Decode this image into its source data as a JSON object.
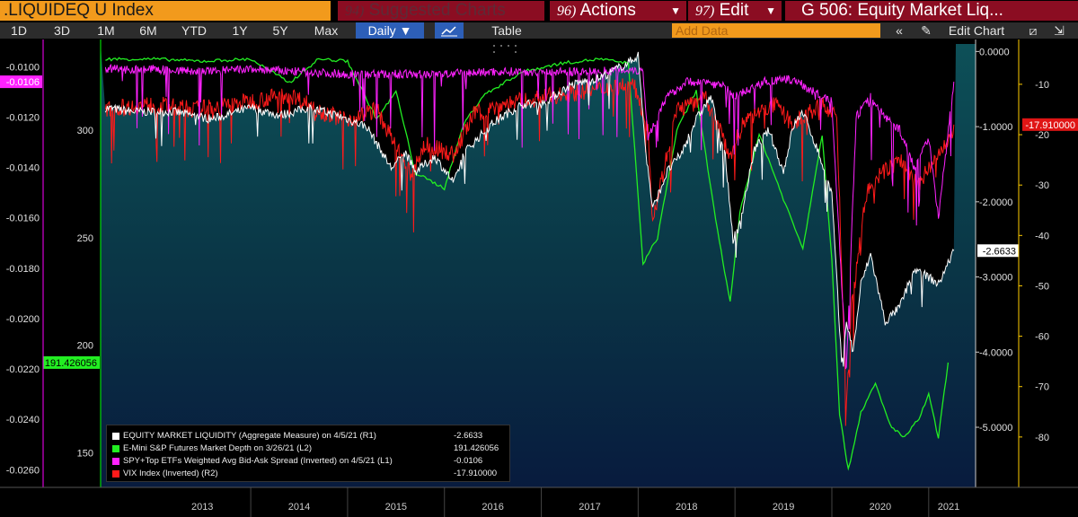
{
  "header": {
    "ticker": ".LIQUIDEQ U Index",
    "suggested": {
      "num": "94)",
      "label": "Suggested Charts"
    },
    "actions": {
      "num": "96)",
      "label": "Actions"
    },
    "edit": {
      "num": "97)",
      "label": "Edit"
    },
    "chart_title": "G 506: Equity Market Liq..."
  },
  "toolbar": {
    "ranges": [
      "1D",
      "3D",
      "1M",
      "6M",
      "YTD",
      "1Y",
      "5Y",
      "Max"
    ],
    "frequency": "Daily",
    "table": "Table",
    "add_data_placeholder": "Add Data",
    "edit_chart": "Edit Chart",
    "back_icon": "double-chevron-left-icon",
    "pencil_icon": "pencil-icon",
    "line_chart_icon": "line-chart-icon",
    "edit_icon": "edit-icon",
    "export_icon": "export-icon"
  },
  "chart_data": {
    "type": "line",
    "background": "#0a3a44",
    "x_ticks": [
      "2013",
      "2014",
      "2015",
      "2016",
      "2017",
      "2018",
      "2019",
      "2020",
      "2021"
    ],
    "axes": {
      "L1": {
        "ticks": [
          "-0.0100",
          "-0.0120",
          "-0.0140",
          "-0.0160",
          "-0.0180",
          "-0.0200",
          "-0.0220",
          "-0.0240",
          "-0.0260"
        ],
        "range": [
          -0.0267,
          -0.0091
        ],
        "color": "#ff00ff"
      },
      "L2": {
        "ticks": [
          "300",
          "250",
          "200",
          "150"
        ],
        "range": [
          134,
          340
        ],
        "color": "#00ff00"
      },
      "R1": {
        "ticks": [
          "0.0000",
          "-1.0000",
          "-2.0000",
          "-3.0000",
          "-4.0000",
          "-5.0000"
        ],
        "range": [
          -5.8,
          0.1
        ],
        "color": "#ffffff"
      },
      "R2": {
        "ticks": [
          "-10",
          "-20",
          "-30",
          "-40",
          "-50",
          "-60",
          "-70",
          "-80"
        ],
        "range": [
          -90,
          -2
        ],
        "color": "#ffcc00"
      }
    },
    "current_labels": {
      "L1": "-0.0106",
      "L2": "191.426056",
      "R1": "-2.6633",
      "R2": "-17.910000"
    },
    "series": [
      {
        "name": "EQUITY MARKET LIQUIDITY (Aggregate Measure) on 4/5/21 (R1)",
        "value": "-2.6633",
        "axis": "R1",
        "color": "#ffffff",
        "x": [
          2012.5,
          2012.8,
          2013.2,
          2013.6,
          2014.0,
          2014.3,
          2014.6,
          2014.9,
          2015.2,
          2015.45,
          2015.6,
          2015.7,
          2015.9,
          2016.1,
          2016.2,
          2016.5,
          2016.8,
          2017.0,
          2017.3,
          2017.6,
          2017.9,
          2018.0,
          2018.08,
          2018.15,
          2018.3,
          2018.45,
          2018.6,
          2018.75,
          2018.9,
          2018.98,
          2019.05,
          2019.2,
          2019.35,
          2019.5,
          2019.6,
          2019.7,
          2019.85,
          2020.0,
          2020.1,
          2020.15,
          2020.22,
          2020.3,
          2020.4,
          2020.55,
          2020.7,
          2020.85,
          2021.0,
          2021.1,
          2021.26
        ],
        "y": [
          -0.75,
          -0.8,
          -0.8,
          -0.9,
          -0.75,
          -0.85,
          -0.75,
          -0.85,
          -1.0,
          -1.55,
          -1.35,
          -1.6,
          -1.4,
          -1.75,
          -1.35,
          -0.95,
          -0.7,
          -0.7,
          -0.45,
          -0.35,
          -0.15,
          -0.05,
          -1.35,
          -2.1,
          -1.6,
          -1.35,
          -0.9,
          -0.6,
          -1.4,
          -2.5,
          -2.3,
          -1.3,
          -1.05,
          -1.6,
          -1.0,
          -0.8,
          -1.3,
          -1.9,
          -4.15,
          -3.6,
          -4.0,
          -3.1,
          -2.7,
          -3.6,
          -3.4,
          -2.9,
          -3.0,
          -3.1,
          -2.65
        ]
      },
      {
        "name": "E-Mini S&P Futures Market Depth on 3/26/21 (L2)",
        "value": "191.426056",
        "axis": "L2",
        "color": "#22ee22",
        "x": [
          2012.5,
          2013.0,
          2013.5,
          2014.0,
          2014.4,
          2014.7,
          2015.0,
          2015.3,
          2015.5,
          2015.7,
          2016.0,
          2016.2,
          2016.4,
          2016.8,
          2017.2,
          2017.6,
          2017.9,
          2018.05,
          2018.2,
          2018.4,
          2018.6,
          2018.8,
          2018.95,
          2019.05,
          2019.25,
          2019.5,
          2019.7,
          2019.9,
          2020.0,
          2020.08,
          2020.17,
          2020.3,
          2020.45,
          2020.6,
          2020.75,
          2020.9,
          2021.0,
          2021.1,
          2021.2
        ],
        "y": [
          333,
          333,
          332,
          333,
          322,
          333,
          332,
          305,
          318,
          280,
          273,
          303,
          316,
          327,
          331,
          333,
          331,
          238,
          250,
          300,
          318,
          258,
          220,
          262,
          298,
          268,
          245,
          298,
          240,
          168,
          142,
          169,
          182,
          163,
          157,
          166,
          177,
          157,
          192
        ]
      },
      {
        "name": "SPY+Top ETFs Weighted Avg Bid-Ask Spread (Inverted) on 4/5/21 (L1)",
        "value": "-0.0106",
        "axis": "L1",
        "color": "#ff22ff",
        "x": [
          2012.5,
          2013.0,
          2013.5,
          2014.0,
          2014.5,
          2015.0,
          2015.5,
          2016.0,
          2016.5,
          2017.0,
          2017.5,
          2017.95,
          2018.05,
          2018.1,
          2018.3,
          2018.5,
          2018.7,
          2018.9,
          2019.0,
          2019.3,
          2019.6,
          2019.9,
          2020.0,
          2020.1,
          2020.15,
          2020.25,
          2020.4,
          2020.55,
          2020.7,
          2020.85,
          2021.0,
          2021.1,
          2021.26
        ],
        "y": [
          -0.0101,
          -0.0101,
          -0.0102,
          -0.0101,
          -0.0102,
          -0.0103,
          -0.0103,
          -0.0103,
          -0.0102,
          -0.0102,
          -0.0102,
          -0.0101,
          -0.0102,
          -0.0128,
          -0.0112,
          -0.0106,
          -0.0106,
          -0.0108,
          -0.0112,
          -0.0106,
          -0.0105,
          -0.0112,
          -0.0114,
          -0.0185,
          -0.022,
          -0.012,
          -0.0112,
          -0.012,
          -0.0125,
          -0.014,
          -0.0128,
          -0.016,
          -0.0106
        ]
      },
      {
        "name": "VIX Index (Inverted) (R2)",
        "value": "-17.910000",
        "axis": "R2",
        "color": "#ff1a1a",
        "x": [
          2012.5,
          2013.0,
          2013.4,
          2013.8,
          2014.1,
          2014.4,
          2014.8,
          2015.0,
          2015.3,
          2015.65,
          2015.8,
          2016.1,
          2016.3,
          2016.6,
          2016.9,
          2017.2,
          2017.6,
          2017.95,
          2018.1,
          2018.15,
          2018.4,
          2018.7,
          2018.95,
          2019.1,
          2019.4,
          2019.6,
          2019.9,
          2020.05,
          2020.15,
          2020.2,
          2020.35,
          2020.5,
          2020.7,
          2020.9,
          2021.05,
          2021.2,
          2021.26
        ],
        "y": [
          -15,
          -14,
          -15,
          -14,
          -13,
          -12,
          -16,
          -17,
          -15,
          -28,
          -22,
          -24,
          -16,
          -14,
          -13,
          -12,
          -11,
          -10,
          -18,
          -37,
          -15,
          -13,
          -24,
          -17,
          -14,
          -18,
          -14,
          -16,
          -75,
          -55,
          -32,
          -28,
          -25,
          -30,
          -25,
          -22,
          -18
        ]
      }
    ]
  }
}
